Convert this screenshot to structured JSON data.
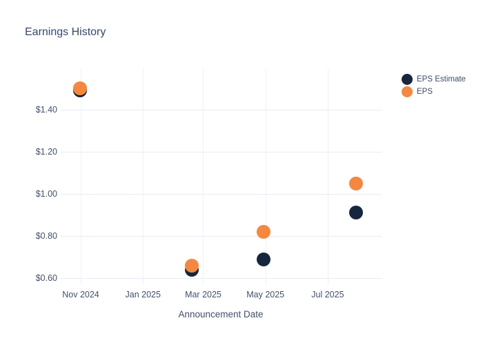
{
  "chart_data": {
    "type": "scatter",
    "title": "Earnings History",
    "xlabel": "Announcement Date",
    "ylabel": "",
    "grid": true,
    "legend_position": "right",
    "background_color": "#ffffff",
    "grid_color": "#e8ebf2",
    "text_color": "#42506b",
    "title_color": "#36466b",
    "ylim": [
      0.57,
      1.59
    ],
    "y_ticks": [
      {
        "label": "$1.40",
        "value": 1.4
      },
      {
        "label": "$1.20",
        "value": 1.2
      },
      {
        "label": "$1.00",
        "value": 1.0
      },
      {
        "label": "$0.80",
        "value": 0.8
      },
      {
        "label": "$0.60",
        "value": 0.6
      }
    ],
    "x_ticks": [
      {
        "label": "Nov 2024",
        "date": "2024-11-01"
      },
      {
        "label": "Jan 2025",
        "date": "2025-01-01"
      },
      {
        "label": "Mar 2025",
        "date": "2025-03-01"
      },
      {
        "label": "May 2025",
        "date": "2025-05-01"
      },
      {
        "label": "Jul 2025",
        "date": "2025-07-01"
      }
    ],
    "series": [
      {
        "name": "EPS Estimate",
        "color": "#16263f",
        "marker": "circle",
        "points": [
          {
            "date": "2024-10-31",
            "value": 1.49
          },
          {
            "date": "2025-02-18",
            "value": 0.64
          },
          {
            "date": "2025-04-29",
            "value": 0.69
          },
          {
            "date": "2025-07-29",
            "value": 0.91
          }
        ]
      },
      {
        "name": "EPS",
        "color": "#f6873f",
        "marker": "circle",
        "points": [
          {
            "date": "2024-10-31",
            "value": 1.5
          },
          {
            "date": "2025-02-18",
            "value": 0.66
          },
          {
            "date": "2025-04-29",
            "value": 0.82
          },
          {
            "date": "2025-07-29",
            "value": 1.05
          }
        ]
      }
    ]
  }
}
